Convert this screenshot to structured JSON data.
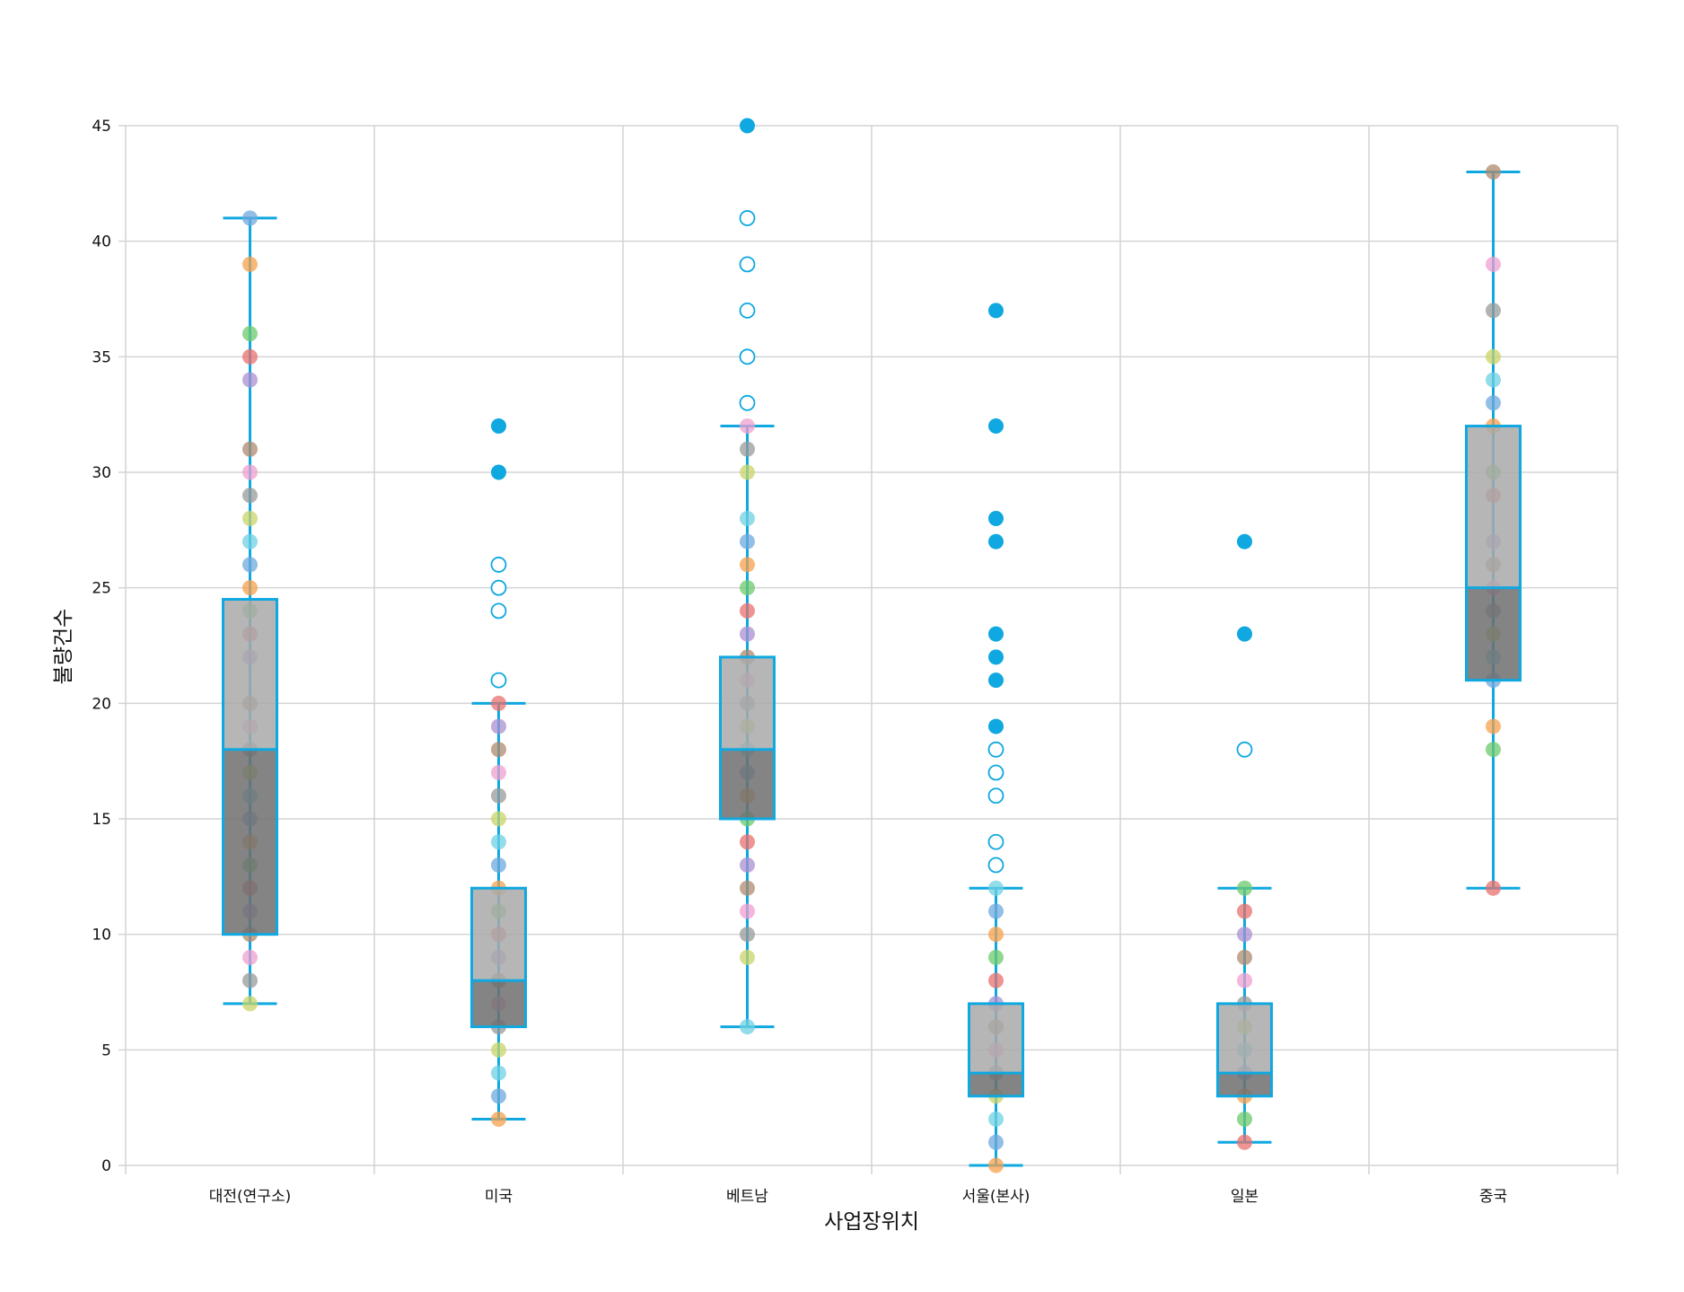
{
  "chart_data": {
    "type": "box",
    "title": "",
    "xlabel": "사업장위치",
    "ylabel": "불량건수",
    "ylim": [
      0,
      45
    ],
    "yticks": [
      "0",
      "5",
      "10",
      "15",
      "20",
      "25",
      "30",
      "35",
      "40",
      "45"
    ],
    "grid": true,
    "colors": {
      "accent": "#0fa8e0",
      "box_upper": "#a9a9a9",
      "box_lower": "#6e6e6e",
      "grid": "#d4d4d4",
      "dot_palette": [
        "#6fa8dc",
        "#f6a04d",
        "#6cc96c",
        "#e8706e",
        "#a98fd0",
        "#b08a6e",
        "#ef9fcf",
        "#9a9a9a",
        "#c9d46a",
        "#6fd0e3"
      ]
    },
    "categories": [
      {
        "label": "대전(연구소)",
        "q1": 10,
        "median": 18,
        "q3": 24.5,
        "whisker_low": 7,
        "whisker_high": 41,
        "points": [
          41,
          39,
          36,
          35,
          34,
          31,
          30,
          29,
          28,
          27,
          26,
          25,
          24,
          23,
          22,
          20,
          19,
          18,
          17,
          16,
          15,
          14,
          13,
          12,
          11,
          10,
          9,
          8,
          7
        ],
        "outliers_hollow": [],
        "outliers_filled": []
      },
      {
        "label": "미국",
        "q1": 6,
        "median": 8,
        "q3": 12,
        "whisker_low": 2,
        "whisker_high": 20,
        "points": [
          20,
          19,
          18,
          17,
          16,
          15,
          14,
          13,
          12,
          11,
          10,
          9,
          8,
          7,
          6,
          5,
          4,
          3,
          2
        ],
        "outliers_hollow": [
          26,
          25,
          24,
          21
        ],
        "outliers_filled": [
          32,
          30
        ]
      },
      {
        "label": "베트남",
        "q1": 15,
        "median": 18,
        "q3": 22,
        "whisker_low": 6,
        "whisker_high": 32,
        "points": [
          32,
          31,
          30,
          28,
          27,
          26,
          25,
          24,
          23,
          22,
          21,
          20,
          19,
          18,
          17,
          16,
          15,
          14,
          13,
          12,
          11,
          10,
          9,
          6
        ],
        "outliers_hollow": [
          41,
          39,
          37,
          35,
          33
        ],
        "outliers_filled": [
          45
        ]
      },
      {
        "label": "서울(본사)",
        "q1": 3,
        "median": 4,
        "q3": 7,
        "whisker_low": 0,
        "whisker_high": 12,
        "points": [
          12,
          11,
          10,
          9,
          8,
          7,
          6,
          5,
          4,
          3,
          2,
          1,
          0
        ],
        "outliers_hollow": [
          18,
          17,
          16,
          14,
          13
        ],
        "outliers_filled": [
          37,
          32,
          28,
          27,
          23,
          22,
          21,
          19
        ]
      },
      {
        "label": "일본",
        "q1": 3,
        "median": 4,
        "q3": 7,
        "whisker_low": 1,
        "whisker_high": 12,
        "points": [
          12,
          11,
          10,
          9,
          8,
          7,
          6,
          5,
          4,
          3,
          2,
          1
        ],
        "outliers_hollow": [
          18
        ],
        "outliers_filled": [
          27,
          23
        ]
      },
      {
        "label": "중국",
        "q1": 21,
        "median": 25,
        "q3": 32,
        "whisker_low": 12,
        "whisker_high": 43,
        "points": [
          43,
          39,
          37,
          35,
          34,
          33,
          32,
          30,
          29,
          27,
          26,
          25,
          24,
          23,
          22,
          21,
          19,
          18,
          12
        ],
        "outliers_hollow": [],
        "outliers_filled": []
      }
    ]
  }
}
